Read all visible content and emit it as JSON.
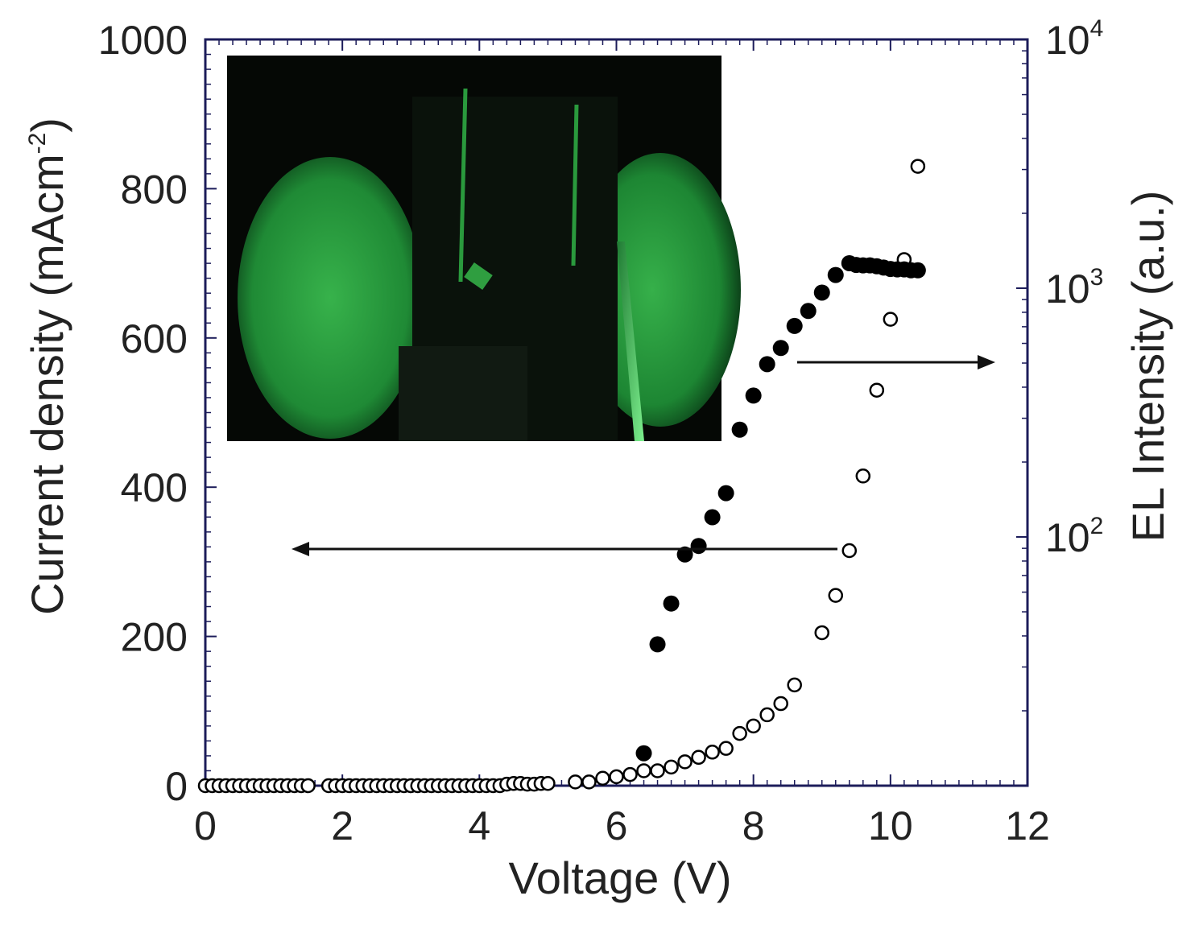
{
  "chart_data": {
    "type": "scatter",
    "title": "",
    "xlabel": "Voltage (V)",
    "ylabel": "Current density (mAcm-2)",
    "ylabel_parts": {
      "text": "Current density (mAcm",
      "sup": "-2",
      "close": ")"
    },
    "y2label": "EL Intensity (a.u.)",
    "xlim": [
      0,
      12
    ],
    "ylim": [
      0,
      1000
    ],
    "y2lim": [
      10,
      10000
    ],
    "y2scale": "log",
    "xticks": [
      0,
      2,
      4,
      6,
      8,
      10,
      12
    ],
    "xtick_labels": [
      "0",
      "2",
      "4",
      "6",
      "8",
      "10",
      "12"
    ],
    "yticks": [
      0,
      200,
      400,
      600,
      800,
      1000
    ],
    "ytick_labels": [
      "0",
      "200",
      "400",
      "600",
      "800",
      "1000"
    ],
    "y2ticks": [
      100,
      1000,
      10000
    ],
    "y2tick_labels": [
      {
        "base": "10",
        "exp": "2"
      },
      {
        "base": "10",
        "exp": "3"
      },
      {
        "base": "10",
        "exp": "4"
      }
    ],
    "grid": false,
    "colors": {
      "frame": "#1c1c5a",
      "marker": "#000000",
      "text": "#222222",
      "inset_glow": "#2fae45"
    },
    "series": [
      {
        "axis": "left",
        "marker": "open-circle",
        "x": [
          0.0,
          0.1,
          0.2,
          0.3,
          0.4,
          0.5,
          0.6,
          0.7,
          0.8,
          0.9,
          1.0,
          1.1,
          1.2,
          1.3,
          1.4,
          1.5,
          1.8,
          1.9,
          2.0,
          2.1,
          2.2,
          2.3,
          2.4,
          2.5,
          2.6,
          2.7,
          2.8,
          2.9,
          3.0,
          3.1,
          3.2,
          3.3,
          3.4,
          3.5,
          3.6,
          3.7,
          3.8,
          3.9,
          4.0,
          4.1,
          4.2,
          4.3,
          4.4,
          4.5,
          4.6,
          4.7,
          4.8,
          4.9,
          5.0,
          5.4,
          5.6,
          5.8,
          6.0,
          6.2,
          6.4,
          6.6,
          6.8,
          7.0,
          7.2,
          7.4,
          7.6,
          7.8,
          8.0,
          8.2,
          8.4,
          8.6,
          9.0,
          9.2,
          9.4,
          9.6,
          9.8,
          10.0,
          10.2,
          10.4
        ],
        "y": [
          0,
          0,
          0,
          0,
          0,
          0,
          0,
          0,
          0,
          0,
          0,
          0,
          0,
          0,
          0,
          0,
          0,
          0,
          0,
          0,
          0,
          0,
          0,
          0,
          0,
          0,
          0,
          0,
          0,
          0,
          0,
          0,
          0,
          0,
          0,
          0,
          0,
          0,
          0,
          0,
          0,
          0,
          2,
          3,
          3,
          2,
          2,
          3,
          3,
          5,
          5,
          10,
          12,
          15,
          20,
          20,
          25,
          32,
          38,
          45,
          50,
          70,
          80,
          95,
          110,
          135,
          205,
          255,
          315,
          415,
          530,
          625,
          705,
          830
        ]
      },
      {
        "axis": "right",
        "marker": "filled-circle",
        "x": [
          6.4,
          6.6,
          6.8,
          7.0,
          7.2,
          7.4,
          7.6,
          7.8,
          8.0,
          8.2,
          8.4,
          8.6,
          8.8,
          9.0,
          9.2,
          9.4,
          9.5,
          9.6,
          9.7,
          9.8,
          9.9,
          10.0,
          10.1,
          10.2,
          10.3,
          10.4
        ],
        "y": [
          13.5,
          37,
          54,
          85,
          92,
          120,
          150,
          270,
          370,
          495,
          575,
          705,
          810,
          960,
          1130,
          1260,
          1240,
          1235,
          1235,
          1225,
          1210,
          1195,
          1190,
          1190,
          1180,
          1180
        ]
      }
    ]
  }
}
